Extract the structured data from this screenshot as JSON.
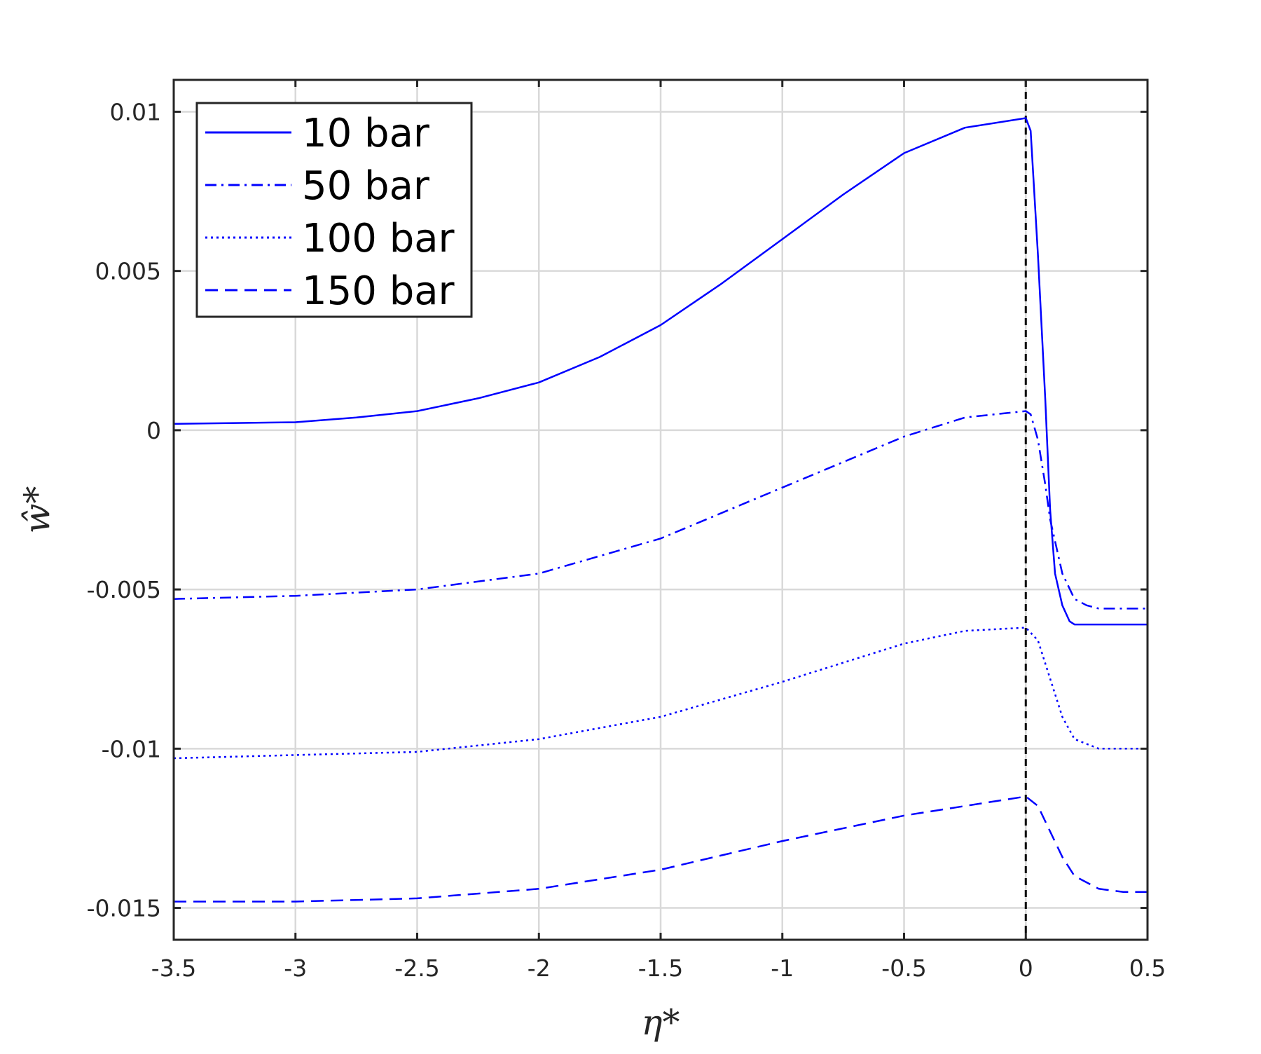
{
  "chart_data": {
    "type": "line",
    "title": "",
    "xlabel": "η*",
    "ylabel": "ŵ*",
    "xlim": [
      -3.5,
      0.5
    ],
    "ylim": [
      -0.016,
      0.011
    ],
    "xticks": [
      -3.5,
      -3,
      -2.5,
      -2,
      -1.5,
      -1,
      -0.5,
      0,
      0.5
    ],
    "xtick_labels": [
      "-3.5",
      "-3",
      "-2.5",
      "-2",
      "-1.5",
      "-1",
      "-0.5",
      "0",
      "0.5"
    ],
    "yticks": [
      0.01,
      0.005,
      0,
      -0.005,
      -0.01,
      -0.015
    ],
    "ytick_labels": [
      "0.01",
      "0.005",
      "0",
      "-0.005",
      "-0.01",
      "-0.015"
    ],
    "grid": true,
    "legend_position": "top-left",
    "line_color": "#0000ff",
    "vline_x": 0,
    "series": [
      {
        "name": "10 bar",
        "style": "solid",
        "x": [
          -3.5,
          -3.0,
          -2.75,
          -2.5,
          -2.25,
          -2.0,
          -1.75,
          -1.5,
          -1.25,
          -1.0,
          -0.75,
          -0.5,
          -0.25,
          0.0,
          0.02,
          0.05,
          0.08,
          0.1,
          0.12,
          0.15,
          0.18,
          0.2,
          0.25,
          0.5
        ],
        "y": [
          0.0002,
          0.00025,
          0.0004,
          0.0006,
          0.001,
          0.0015,
          0.0023,
          0.0033,
          0.0046,
          0.006,
          0.0074,
          0.0087,
          0.0095,
          0.0098,
          0.0094,
          0.0055,
          0.001,
          -0.0025,
          -0.0045,
          -0.0055,
          -0.006,
          -0.0061,
          -0.0061,
          -0.0061
        ]
      },
      {
        "name": "50 bar",
        "style": "dashdot",
        "x": [
          -3.5,
          -3.0,
          -2.5,
          -2.0,
          -1.5,
          -1.0,
          -0.5,
          -0.25,
          0.0,
          0.02,
          0.05,
          0.08,
          0.1,
          0.15,
          0.2,
          0.25,
          0.3,
          0.4,
          0.5
        ],
        "y": [
          -0.0053,
          -0.0052,
          -0.005,
          -0.0045,
          -0.0034,
          -0.0018,
          -0.0002,
          0.0004,
          0.0006,
          0.0005,
          -0.0003,
          -0.0017,
          -0.0028,
          -0.0045,
          -0.0053,
          -0.0055,
          -0.0056,
          -0.0056,
          -0.0056
        ]
      },
      {
        "name": "100 bar",
        "style": "dotted",
        "x": [
          -3.5,
          -3.0,
          -2.5,
          -2.0,
          -1.5,
          -1.0,
          -0.5,
          -0.25,
          0.0,
          0.05,
          0.1,
          0.15,
          0.2,
          0.3,
          0.4,
          0.5
        ],
        "y": [
          -0.0103,
          -0.0102,
          -0.0101,
          -0.0097,
          -0.009,
          -0.0079,
          -0.0067,
          -0.0063,
          -0.0062,
          -0.0066,
          -0.0078,
          -0.009,
          -0.0097,
          -0.01,
          -0.01,
          -0.01
        ]
      },
      {
        "name": "150 bar",
        "style": "dashed",
        "x": [
          -3.5,
          -3.0,
          -2.5,
          -2.0,
          -1.5,
          -1.0,
          -0.5,
          -0.25,
          0.0,
          0.05,
          0.1,
          0.15,
          0.2,
          0.3,
          0.4,
          0.5
        ],
        "y": [
          -0.0148,
          -0.0148,
          -0.0147,
          -0.0144,
          -0.0138,
          -0.0129,
          -0.0121,
          -0.0118,
          -0.0115,
          -0.0118,
          -0.0126,
          -0.0134,
          -0.014,
          -0.0144,
          -0.0145,
          -0.0145
        ]
      }
    ]
  }
}
